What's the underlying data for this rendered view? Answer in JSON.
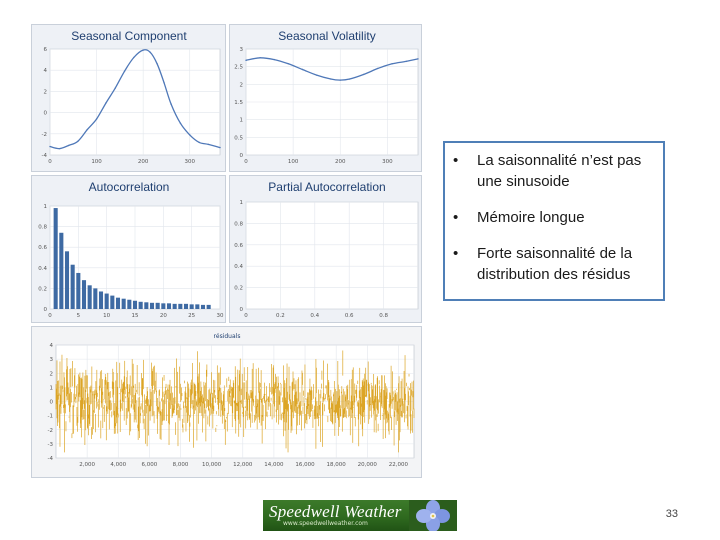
{
  "slide": {
    "page_number": "33"
  },
  "bullets": [
    "La saisonnalité n’est pas une sinusoide",
    "Mémoire longue",
    "Forte saisonnalité de la distribution des résidus"
  ],
  "logo": {
    "brand": "Speedwell Weather",
    "url": "www.speedwellweather.com"
  },
  "colors": {
    "line": "#4f78b8",
    "bar": "#3e6aa3",
    "residual": "#dca526",
    "title": "#1f3f70"
  },
  "chart_data": [
    {
      "type": "line",
      "title": "Seasonal Component",
      "xlim": [
        0,
        365
      ],
      "ylim": [
        -4,
        6
      ],
      "x_ticks": [
        "0",
        "100",
        "200",
        "300"
      ],
      "y_ticks": [
        "6",
        "4",
        "2",
        "0",
        "-2",
        "-4"
      ],
      "x": [
        0,
        20,
        40,
        60,
        80,
        100,
        120,
        140,
        160,
        180,
        200,
        215,
        230,
        245,
        260,
        280,
        300,
        320,
        340,
        365
      ],
      "y": [
        -3.2,
        -3.4,
        -3.1,
        -2.7,
        -1.6,
        -0.6,
        0.9,
        2.3,
        3.9,
        5.2,
        5.9,
        5.7,
        4.6,
        2.8,
        0.8,
        -1.0,
        -2.1,
        -2.8,
        -3.0,
        -3.3
      ]
    },
    {
      "type": "line",
      "title": "Seasonal Volatility",
      "xlim": [
        0,
        365
      ],
      "ylim": [
        0,
        3
      ],
      "x_ticks": [
        "0",
        "100",
        "200",
        "300"
      ],
      "y_ticks": [
        "3",
        "2.5",
        "2",
        "1.5",
        "1",
        "0.5",
        "0"
      ],
      "x": [
        0,
        30,
        60,
        90,
        120,
        150,
        180,
        200,
        220,
        250,
        280,
        310,
        340,
        365
      ],
      "y": [
        2.68,
        2.75,
        2.7,
        2.58,
        2.42,
        2.26,
        2.15,
        2.12,
        2.15,
        2.28,
        2.45,
        2.58,
        2.65,
        2.72
      ]
    },
    {
      "type": "bar",
      "title": "Autocorrelation",
      "xlim": [
        0,
        30
      ],
      "ylim": [
        0,
        1
      ],
      "x_ticks": [
        "0",
        "5",
        "10",
        "15",
        "20",
        "25",
        "30"
      ],
      "y_ticks": [
        "1",
        "0.8",
        "0.6",
        "0.4",
        "0.2",
        "0"
      ],
      "categories": [
        1,
        2,
        3,
        4,
        5,
        6,
        7,
        8,
        9,
        10,
        11,
        12,
        13,
        14,
        15,
        16,
        17,
        18,
        19,
        20,
        21,
        22,
        23,
        24,
        25,
        26,
        27,
        28
      ],
      "values": [
        0.98,
        0.74,
        0.56,
        0.43,
        0.35,
        0.28,
        0.23,
        0.2,
        0.17,
        0.15,
        0.13,
        0.11,
        0.1,
        0.09,
        0.08,
        0.07,
        0.065,
        0.06,
        0.06,
        0.055,
        0.055,
        0.05,
        0.05,
        0.05,
        0.045,
        0.045,
        0.04,
        0.04
      ]
    },
    {
      "type": "bar",
      "title": "Partial Autocorrelation",
      "xlim": [
        0,
        1
      ],
      "ylim": [
        0,
        1
      ],
      "x_ticks": [
        "0",
        "0.2",
        "0.4",
        "0.6",
        "0.8"
      ],
      "y_ticks": [
        "1",
        "0.8",
        "0.6",
        "0.4",
        "0.2",
        "0"
      ],
      "categories": [],
      "values": []
    },
    {
      "type": "line",
      "title": "résiduals",
      "xlim": [
        0,
        23000
      ],
      "ylim": [
        -4,
        4
      ],
      "x_ticks": [
        "2,000",
        "4,000",
        "6,000",
        "8,000",
        "10,000",
        "12,000",
        "14,000",
        "16,000",
        "18,000",
        "20,000",
        "22,000"
      ],
      "y_ticks": [
        "4",
        "3",
        "2",
        "1",
        "0",
        "-1",
        "-2",
        "-3",
        "-4"
      ],
      "noise": {
        "n_points": 23000,
        "sd": 1.0,
        "min": -3.6,
        "max": 3.8
      }
    }
  ]
}
